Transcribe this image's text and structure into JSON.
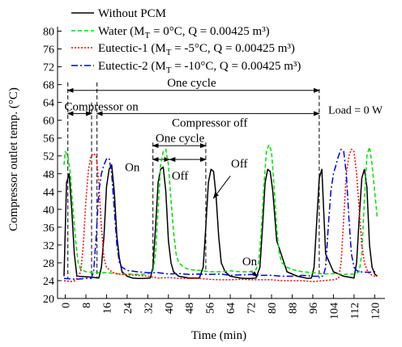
{
  "chart_data": {
    "type": "line",
    "xlabel": "Time (min)",
    "ylabel": "Compressor outlet temp. (°C)",
    "xlim": [
      -3,
      124
    ],
    "ylim": [
      20,
      81
    ],
    "xticks": [
      0,
      8,
      16,
      24,
      32,
      40,
      48,
      56,
      64,
      72,
      80,
      88,
      96,
      104,
      112,
      120
    ],
    "yticks": [
      20,
      24,
      28,
      32,
      36,
      40,
      44,
      48,
      52,
      56,
      60,
      64,
      68,
      72,
      76,
      80
    ],
    "grid": false,
    "legend_position": "top",
    "series": [
      {
        "name": "Without PCM",
        "legend_main": "Without PCM",
        "legend_sub": "",
        "legend_rest": "",
        "color": "#000000",
        "dash": "",
        "x": [
          -0.5,
          0.5,
          1.5,
          2.5,
          3.5,
          4.5,
          10,
          13,
          14,
          15,
          16,
          17,
          18,
          19,
          20,
          21,
          22,
          24,
          26,
          28,
          30,
          33,
          34,
          35,
          36,
          37,
          38,
          39,
          40,
          41,
          42,
          44,
          48,
          52,
          53.5,
          54.5,
          55.5,
          56.5,
          57.5,
          58.5,
          59.5,
          60.5,
          62,
          64,
          68,
          70,
          72,
          74,
          75.5,
          76.5,
          77.5,
          78.5,
          79.5,
          80.5,
          82,
          86,
          90,
          94,
          95.5,
          96.5,
          97.5,
          98.5,
          99.5,
          101,
          104,
          108,
          112,
          113,
          114,
          115,
          116,
          117,
          118,
          119,
          120,
          121
        ],
        "y": [
          25,
          46,
          48,
          40,
          30,
          25,
          24.8,
          24.6,
          27,
          34,
          45,
          49,
          50,
          44,
          34,
          29,
          26,
          25,
          24.6,
          24.5,
          24.5,
          24.6,
          27,
          36,
          46,
          49,
          49.5,
          44,
          33,
          28,
          26,
          25,
          24.6,
          24.6,
          27,
          36,
          46,
          49,
          48.5,
          43,
          34,
          28,
          26,
          25,
          24.6,
          24.5,
          24.5,
          24.6,
          27,
          36,
          46,
          49,
          48.5,
          44,
          33,
          26,
          25,
          24.5,
          24.6,
          27,
          37,
          47,
          49,
          30,
          26,
          25,
          24.6,
          28,
          38,
          47,
          49,
          45,
          32,
          27,
          25.5,
          25
        ]
      },
      {
        "name": "Water (MT = 0°C, Q = 0.00425 m3)",
        "legend_main": "Water (M",
        "legend_sub": "T",
        "legend_rest": " = 0°C, Q = 0.00425 m³)",
        "color": "#00dd00",
        "dash": "5,3",
        "x": [
          -0.5,
          0,
          1,
          2,
          3,
          4,
          5,
          6,
          8,
          12,
          16,
          20,
          24,
          28,
          32,
          34,
          35,
          36,
          37,
          38,
          39,
          40,
          41,
          42,
          43,
          44,
          46,
          48,
          52,
          56,
          60,
          64,
          68,
          72,
          74,
          75,
          76,
          77,
          78,
          79,
          80,
          81,
          82,
          83,
          84,
          86,
          88,
          92,
          96,
          100,
          104,
          108,
          112,
          114,
          115,
          116,
          117,
          118,
          119,
          120,
          121
        ],
        "y": [
          50,
          53,
          52,
          48,
          40,
          33,
          28,
          26.5,
          26,
          25.8,
          25.8,
          25.6,
          25.5,
          25.4,
          25.5,
          26,
          30,
          40,
          50,
          53,
          53.5,
          50,
          42,
          35,
          30,
          28,
          27,
          26.5,
          26.3,
          26,
          26,
          26.2,
          26,
          26,
          26.5,
          28,
          35,
          45,
          53,
          54.5,
          53,
          45,
          36,
          30,
          28,
          27,
          26.5,
          26,
          25.8,
          25.5,
          25.6,
          25.4,
          25.5,
          26,
          30,
          42,
          52,
          54,
          50,
          44,
          38
        ]
      },
      {
        "name": "Eutectic-1 (MT = -5°C, Q = 0.00425 m3)",
        "legend_main": "Eutectic-1 (M",
        "legend_sub": "T",
        "legend_rest": " = -5°C, Q = 0.00425 m³)",
        "color": "#ff0000",
        "dash": "2,2",
        "x": [
          -0.5,
          2,
          4,
          6,
          7,
          8,
          9,
          10,
          11,
          12,
          13,
          14,
          15,
          16,
          18,
          20,
          24,
          28,
          32,
          36,
          40,
          44,
          48,
          52,
          56,
          60,
          64,
          68,
          72,
          76,
          80,
          84,
          88,
          92,
          96,
          100,
          104,
          106,
          107,
          108,
          109,
          110,
          111,
          112,
          113,
          114,
          115,
          116,
          117,
          118,
          120,
          121
        ],
        "y": [
          24,
          23.8,
          24,
          26,
          32,
          42,
          49,
          52,
          52.5,
          52,
          46,
          36,
          29,
          27,
          26,
          25.5,
          25.3,
          25.2,
          25,
          24.6,
          24.7,
          24.5,
          24.5,
          24.5,
          24.3,
          24.2,
          24.2,
          24.3,
          24.2,
          24.2,
          24.2,
          24,
          24,
          24,
          23.8,
          24,
          24.2,
          24.5,
          28,
          38,
          48,
          52,
          53.5,
          53,
          48,
          40,
          32,
          28,
          26.5,
          25.5,
          25,
          25
        ]
      },
      {
        "name": "Eutectic-2 (MT = -10°C, Q = 0.00425 m3)",
        "legend_main": "Eutectic-2 (M",
        "legend_sub": "T",
        "legend_rest": " = -10°C, Q = 0.00425 m³)",
        "color": "#0000ee",
        "dash": "8,3,2,3",
        "x": [
          -0.5,
          4,
          8,
          10,
          11,
          12,
          13,
          14,
          15,
          16,
          17,
          18,
          19,
          20,
          21,
          22,
          24,
          28,
          32,
          36,
          40,
          44,
          48,
          52,
          56,
          60,
          64,
          68,
          72,
          76,
          80,
          84,
          88,
          92,
          96,
          100,
          101,
          102,
          103,
          104,
          105,
          106,
          107,
          108,
          109,
          110,
          111,
          112,
          113,
          114,
          116,
          118,
          120,
          121
        ],
        "y": [
          24.5,
          24.3,
          24.5,
          24.5,
          26,
          34,
          44,
          48,
          50,
          51.3,
          51.5,
          48,
          40,
          32,
          28,
          27,
          26.3,
          26,
          25.8,
          25.8,
          25.5,
          25.6,
          25.4,
          25.5,
          25.4,
          25.5,
          25.2,
          25.3,
          25.4,
          25.2,
          25.2,
          25,
          25,
          25.2,
          25,
          25,
          27,
          36,
          44,
          48,
          50,
          52,
          53.5,
          53,
          48,
          38,
          30,
          27,
          26.3,
          26,
          25.9,
          25.9,
          26,
          26
        ]
      }
    ],
    "annotations": {
      "one_cycle_top": "One cycle",
      "compressor_on": "Compressor on",
      "compressor_off": "Compressor off",
      "one_cycle_mid": "One cycle",
      "on_label": "On",
      "off_label": "Off",
      "off_label_2": "Off",
      "on_label_2": "On",
      "load": "Load = 0 W"
    }
  }
}
